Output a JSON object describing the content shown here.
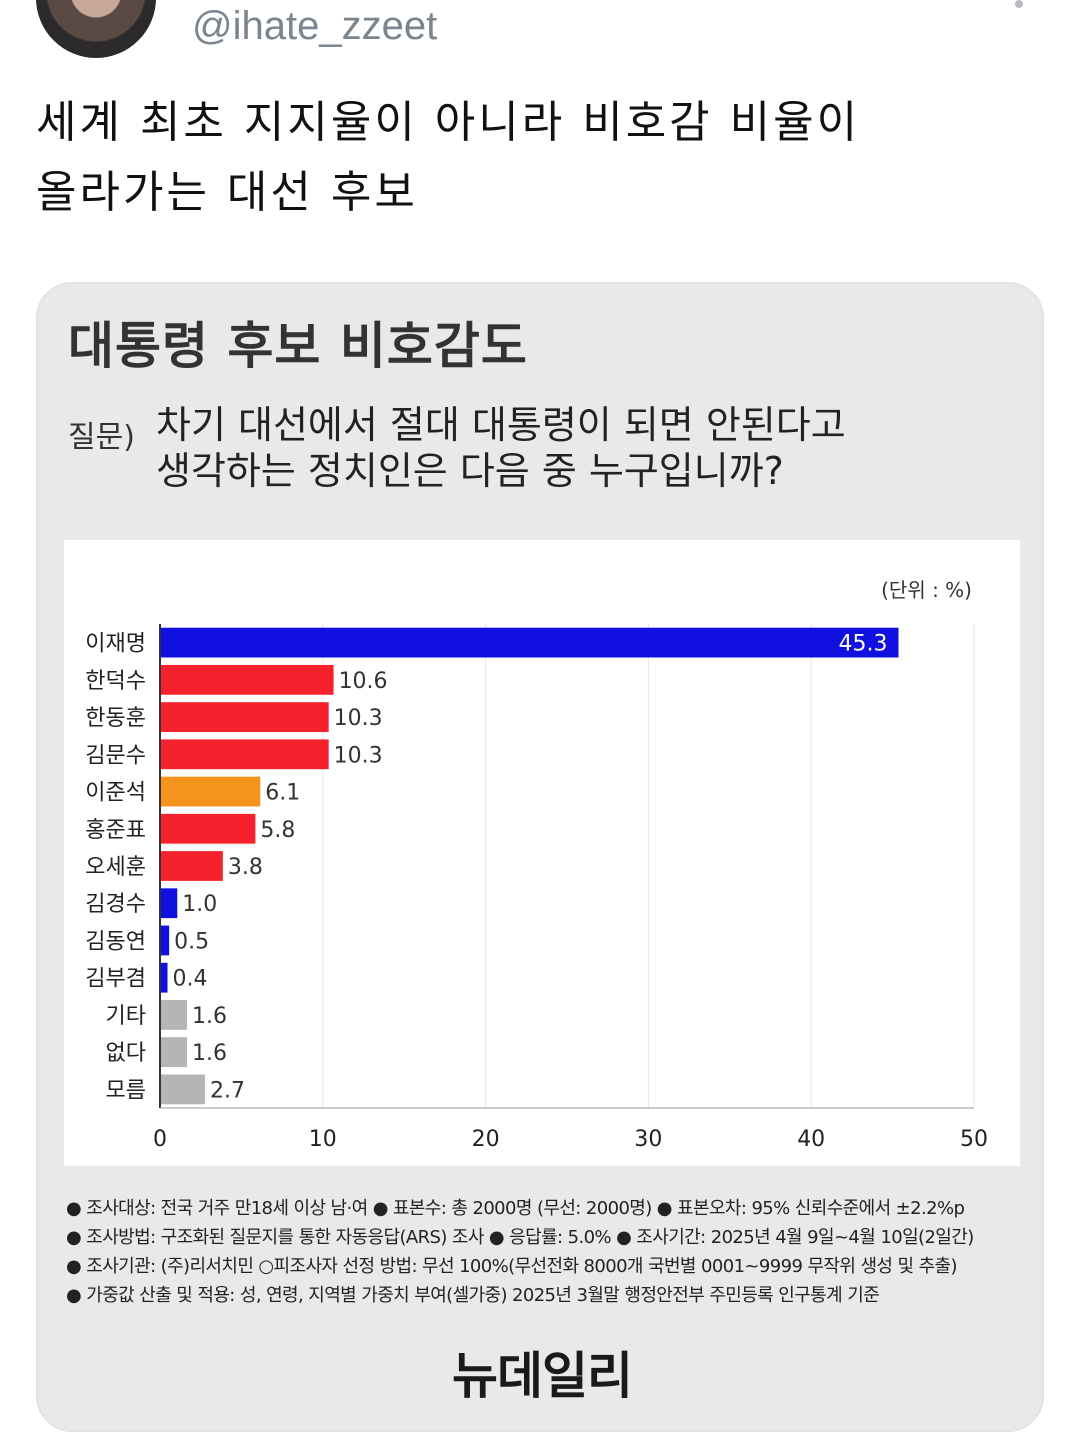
{
  "tweet": {
    "handle": "@ihate_zzeet",
    "text_line1": "세계 최초 지지율이 아니라 비호감 비율이",
    "text_line2": "올라가는 대선 후보"
  },
  "card": {
    "title": "대통령 후보 비호감도",
    "question_label": "질문)",
    "question_line1": "차기 대선에서 절대 대통령이 되면 안된다고",
    "question_line2": "생각하는 정치인은 다음 중 누구입니까?",
    "unit": "(단위 : %)",
    "footnotes": [
      "조사대상: 전국 거주 만18세 이상 남·여 ● 표본수: 총 2000명 (무선: 2000명) ● 표본오차: 95% 신뢰수준에서 ±2.2%p",
      "조사방법: 구조화된 질문지를 통한 자동응답(ARS) 조사 ● 응답률: 5.0% ● 조사기간: 2025년 4월 9일~4월 10일(2일간)",
      "조사기관: (주)리서치민 ○피조사자 선정 방법: 무선 100%(무선전화 8000개 국번별 0001~9999 무작위 생성 및 추출)",
      "가중값 산출 및 적용: 성, 연령, 지역별 가중치 부여(셀가중) 2025년 3월말 행정안전부 주민등록 인구통계 기준"
    ],
    "logo": "뉴데일리"
  },
  "chart_data": {
    "type": "bar",
    "orientation": "horizontal",
    "categories": [
      "이재명",
      "한덕수",
      "한동훈",
      "김문수",
      "이준석",
      "홍준표",
      "오세훈",
      "김경수",
      "김동연",
      "김부겸",
      "기타",
      "없다",
      "모름"
    ],
    "values": [
      45.3,
      10.6,
      10.3,
      10.3,
      6.1,
      5.8,
      3.8,
      1.0,
      0.5,
      0.4,
      1.6,
      1.6,
      2.7
    ],
    "value_labels": [
      "45.3",
      "10.6",
      "10.3",
      "10.3",
      "6.1",
      "5.8",
      "3.8",
      "1.0",
      "0.5",
      "0.4",
      "1.6",
      "1.6",
      "2.7"
    ],
    "bar_colors": [
      "#1010e0",
      "#f5222d",
      "#f5222d",
      "#f5222d",
      "#f5941d",
      "#f5222d",
      "#f5222d",
      "#1010e0",
      "#1010e0",
      "#1010e0",
      "#b5b5b5",
      "#b5b5b5",
      "#b5b5b5"
    ],
    "xticks": [
      "0",
      "10",
      "20",
      "30",
      "40",
      "50"
    ],
    "xlim": [
      0,
      50
    ],
    "grid": true
  }
}
